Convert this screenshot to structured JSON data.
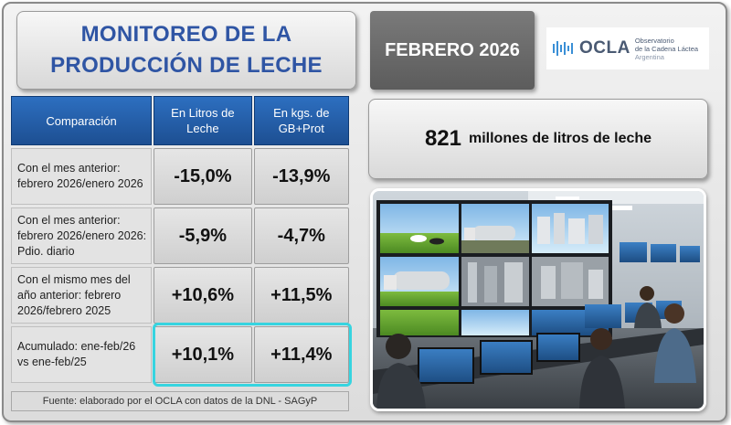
{
  "header": {
    "title_line1": "MONITOREO DE LA",
    "title_line2": "PRODUCCIÓN DE LECHE",
    "month": "FEBRERO 2026"
  },
  "logo": {
    "name": "OCLA",
    "line1": "Observatorio",
    "line2": "de la Cadena Láctea",
    "line3": "Argentina",
    "color": "#4a5a73"
  },
  "table": {
    "headers": [
      "Comparación",
      "En Litros de Leche",
      "En kgs. de GB+Prot"
    ],
    "rows": [
      {
        "label": "Con el mes anterior: febrero 2026/enero 2026",
        "litros": "-15,0%",
        "kgs": "-13,9%"
      },
      {
        "label": "Con el mes anterior: febrero 2026/enero 2026: Pdio. diario",
        "litros": "-5,9%",
        "kgs": "-4,7%"
      },
      {
        "label": "Con el mismo mes del año anterior: febrero 2026/febrero 2025",
        "litros": "+10,6%",
        "kgs": "+11,5%"
      },
      {
        "label": "Acumulado: ene-feb/26 vs ene-feb/25",
        "litros": "+10,1%",
        "kgs": "+11,4%"
      }
    ],
    "highlight_color": "#36d4e0"
  },
  "source": "Fuente: elaborado por el OCLA con datos de la DNL - SAGyP",
  "stat": {
    "value": "821",
    "text": "millones de litros de leche"
  },
  "colors": {
    "title_blue": "#2f55a4",
    "header_blue": "#1d4f92"
  },
  "photo_icon": "control-room-photo"
}
